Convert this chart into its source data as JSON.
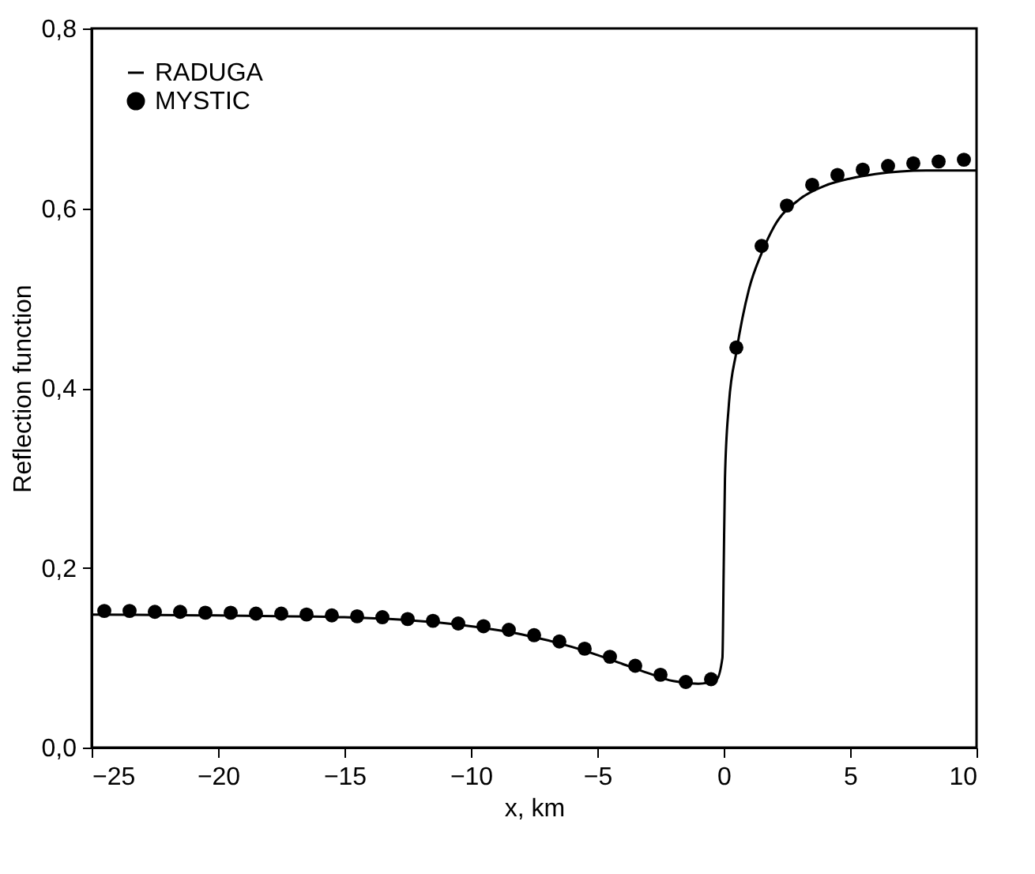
{
  "chart_data": {
    "type": "line",
    "xlabel": "x, km",
    "ylabel": "Reflection function",
    "xlim": [
      -25,
      10
    ],
    "xticks": [
      -25,
      -20,
      -15,
      -10,
      -5,
      0,
      5,
      10
    ],
    "ylim": [
      0,
      0.8
    ],
    "yticks": [
      {
        "value": 0,
        "label": "0,0"
      },
      {
        "value": 0.2,
        "label": "0,2"
      },
      {
        "value": 0.4,
        "label": "0,4"
      },
      {
        "value": 0.6,
        "label": "0,6"
      },
      {
        "value": 0.8,
        "label": "0,8"
      }
    ],
    "grid": false,
    "legend": "top left",
    "series": [
      {
        "name": "RADUGA",
        "color": "#000000",
        "line_style": "solid",
        "x": [
          -25,
          -20,
          -15,
          -10,
          -8,
          -6,
          -5,
          -4,
          -3,
          -2,
          -1,
          -0.3,
          -0.05,
          0,
          0.05,
          0.2,
          0.5,
          1,
          1.5,
          2,
          3,
          4,
          5,
          6,
          8,
          10
        ],
        "values": [
          0.148,
          0.147,
          0.145,
          0.135,
          0.126,
          0.112,
          0.103,
          0.093,
          0.083,
          0.074,
          0.071,
          0.075,
          0.1,
          0.2,
          0.3,
          0.38,
          0.44,
          0.51,
          0.55,
          0.58,
          0.61,
          0.625,
          0.633,
          0.638,
          0.642,
          0.642
        ]
      },
      {
        "name": "MYSTIC",
        "type": "scatter",
        "color": "#000000",
        "marker": "circle",
        "x": [
          -24.5,
          -23.5,
          -22.5,
          -21.5,
          -20.5,
          -19.5,
          -18.5,
          -17.5,
          -16.5,
          -15.5,
          -14.5,
          -13.5,
          -12.5,
          -11.5,
          -10.5,
          -9.5,
          -8.5,
          -7.5,
          -6.5,
          -5.5,
          -4.5,
          -3.5,
          -2.5,
          -1.5,
          -0.5,
          0.5,
          1.5,
          2.5,
          3.5,
          4.5,
          5.5,
          6.5,
          7.5,
          8.5,
          9.5
        ],
        "values": [
          0.152,
          0.152,
          0.151,
          0.151,
          0.15,
          0.15,
          0.149,
          0.149,
          0.148,
          0.147,
          0.146,
          0.145,
          0.143,
          0.141,
          0.138,
          0.135,
          0.131,
          0.125,
          0.118,
          0.11,
          0.101,
          0.091,
          0.081,
          0.073,
          0.076,
          0.445,
          0.558,
          0.603,
          0.626,
          0.637,
          0.643,
          0.647,
          0.65,
          0.652,
          0.654
        ]
      }
    ]
  }
}
